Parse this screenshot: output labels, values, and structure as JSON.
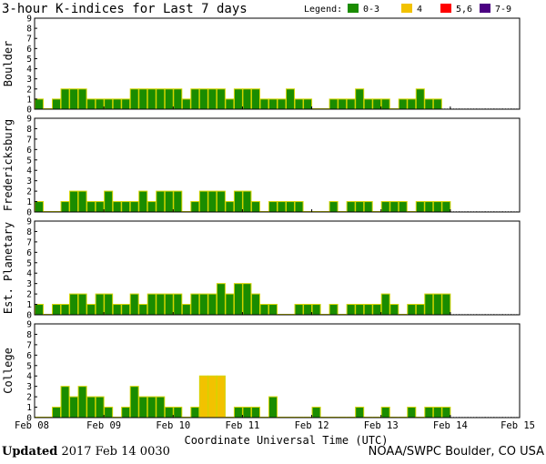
{
  "chart_data": {
    "type": "bar",
    "title": "3-hour K-indices for Last 7 days",
    "legend": {
      "label": "Legend:",
      "entries": [
        {
          "label": "0-3",
          "color": "#1a8c00"
        },
        {
          "label": "4",
          "color": "#f2c200"
        },
        {
          "label": "5,6",
          "color": "#ff0000"
        },
        {
          "label": "7-9",
          "color": "#4b0082"
        }
      ]
    },
    "bar_outline_color": "#d4d400",
    "ylim": [
      0,
      9
    ],
    "yticks": [
      "0",
      "1",
      "2",
      "3",
      "4",
      "5",
      "6",
      "7",
      "8",
      "9"
    ],
    "xlabel": "Coordinate Universal Time (UTC)",
    "x_tick_labels": [
      "Feb 08",
      "Feb 09",
      "Feb 10",
      "Feb 11",
      "Feb 12",
      "Feb 13",
      "Feb 14",
      "Feb 15"
    ],
    "series": [
      {
        "name": "Boulder",
        "values": [
          1,
          0,
          1,
          2,
          2,
          2,
          1,
          1,
          1,
          1,
          1,
          2,
          2,
          2,
          2,
          2,
          2,
          1,
          2,
          2,
          2,
          2,
          1,
          2,
          2,
          2,
          1,
          1,
          1,
          2,
          1,
          1,
          0,
          0,
          1,
          1,
          1,
          2,
          1,
          1,
          1,
          0,
          1,
          1,
          2,
          1,
          1
        ]
      },
      {
        "name": "Fredericksburg",
        "values": [
          1,
          0,
          0,
          1,
          2,
          2,
          1,
          1,
          2,
          1,
          1,
          1,
          2,
          1,
          2,
          2,
          2,
          0,
          1,
          2,
          2,
          2,
          1,
          2,
          2,
          1,
          0,
          1,
          1,
          1,
          1,
          0,
          0,
          0,
          1,
          0,
          1,
          1,
          1,
          0,
          1,
          1,
          1,
          0,
          1,
          1,
          1,
          1
        ]
      },
      {
        "name": "Est. Planetary",
        "values": [
          1,
          0,
          1,
          1,
          2,
          2,
          1,
          2,
          2,
          1,
          1,
          2,
          1,
          2,
          2,
          2,
          2,
          1,
          2,
          2,
          2,
          3,
          2,
          3,
          3,
          2,
          1,
          1,
          0,
          0,
          1,
          1,
          1,
          0,
          1,
          0,
          1,
          1,
          1,
          1,
          2,
          1,
          0,
          1,
          1,
          2,
          2,
          2
        ]
      },
      {
        "name": "College",
        "values": [
          0,
          0,
          1,
          3,
          2,
          3,
          2,
          2,
          1,
          0,
          1,
          3,
          2,
          2,
          2,
          1,
          1,
          0,
          1,
          4,
          4,
          4,
          0,
          1,
          1,
          1,
          0,
          2,
          0,
          0,
          0,
          0,
          1,
          0,
          0,
          0,
          0,
          1,
          0,
          0,
          1,
          0,
          0,
          1,
          0,
          1,
          1,
          1
        ]
      }
    ]
  },
  "footer": {
    "updated_label": "Updated",
    "updated_value": " 2017 Feb 14 0030",
    "credit": "NOAA/SWPC Boulder, CO USA"
  }
}
